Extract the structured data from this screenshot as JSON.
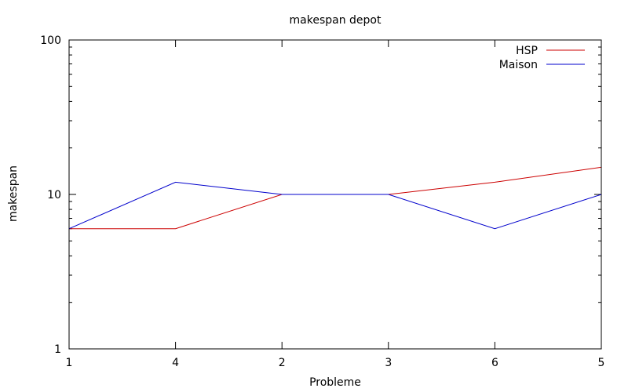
{
  "chart_data": {
    "type": "line",
    "title": "makespan depot",
    "xlabel": "Probleme",
    "ylabel": "makespan",
    "categories": [
      "1",
      "4",
      "2",
      "3",
      "6",
      "5"
    ],
    "yscale": "log",
    "ylim": [
      1,
      100
    ],
    "yticks": [
      {
        "value": 1,
        "label": "1"
      },
      {
        "value": 10,
        "label": "10"
      },
      {
        "value": 100,
        "label": "100"
      }
    ],
    "grid": false,
    "legend_position": "top-right",
    "series": [
      {
        "name": "HSP",
        "color": "#cc0000",
        "values": [
          6,
          6,
          10,
          10,
          12,
          15
        ]
      },
      {
        "name": "Maison",
        "color": "#0000cc",
        "values": [
          6,
          12,
          10,
          10,
          6,
          10
        ]
      }
    ]
  }
}
